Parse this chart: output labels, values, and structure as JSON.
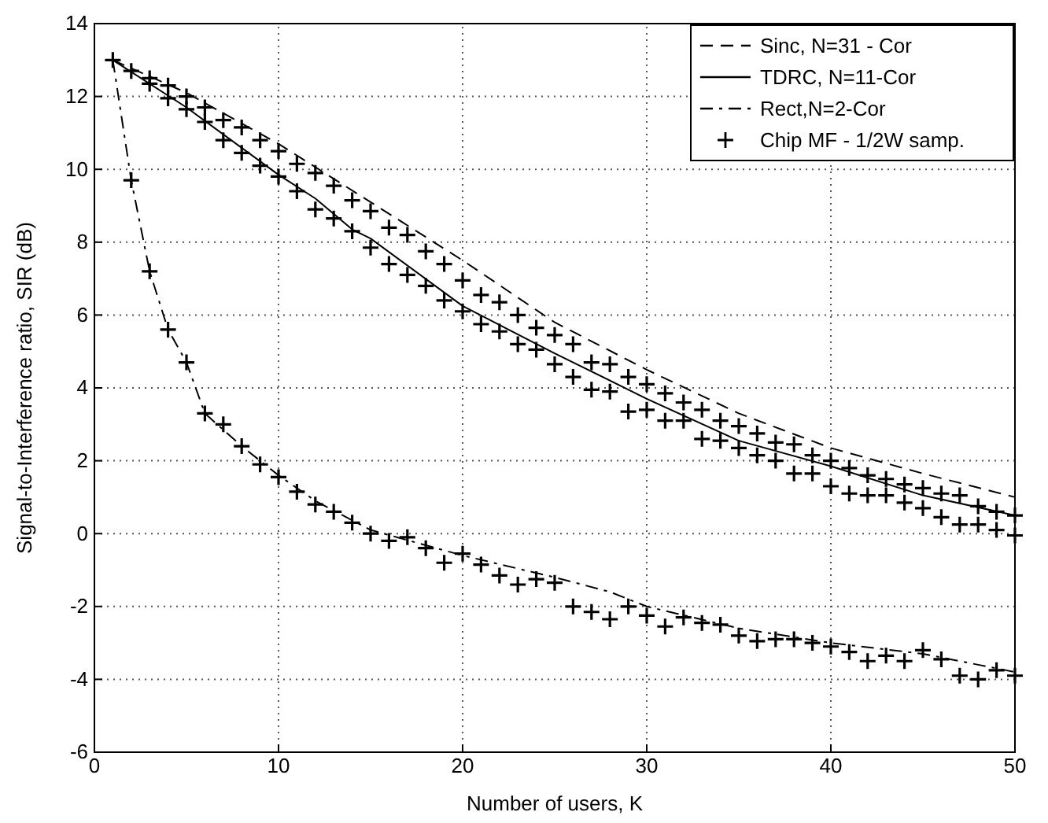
{
  "chart_data": {
    "type": "line",
    "xlabel": "Number of users, K",
    "ylabel": "Signal-to-Interference ratio, SIR (dB)",
    "xlim": [
      0,
      50
    ],
    "ylim": [
      -6,
      14
    ],
    "xticks": [
      0,
      10,
      20,
      30,
      40,
      50
    ],
    "yticks": [
      -6,
      -4,
      -2,
      0,
      2,
      4,
      6,
      8,
      10,
      12,
      14
    ],
    "grid": true,
    "legend": "top right",
    "series": [
      {
        "name": "Sinc, N=31 - Cor",
        "color": "#000000",
        "line_style": "dashed",
        "x": [
          1,
          5,
          10,
          15,
          20,
          25,
          30,
          35,
          40,
          45,
          50
        ],
        "values": [
          13,
          12.1,
          10.7,
          9.1,
          7.5,
          5.8,
          4.5,
          3.3,
          2.35,
          1.65,
          1.0
        ]
      },
      {
        "name": "TDRC, N=11-Cor",
        "color": "#000000",
        "line_style": "solid",
        "x": [
          1,
          5,
          10,
          12,
          14,
          15,
          20,
          25,
          30,
          35,
          40,
          45,
          50
        ],
        "values": [
          13,
          11.7,
          9.85,
          9.2,
          8.35,
          8.1,
          6.25,
          4.95,
          3.7,
          2.55,
          1.85,
          1.05,
          0.5
        ]
      },
      {
        "name": "Rect,N=2-Cor",
        "color": "#000000",
        "line_style": "dashdot",
        "x": [
          1,
          2,
          3,
          4,
          5,
          6,
          8,
          10,
          12,
          15,
          20,
          25,
          28,
          30,
          35,
          40,
          45,
          48,
          50
        ],
        "values": [
          13,
          9.7,
          7.2,
          5.6,
          4.7,
          3.3,
          2.4,
          1.6,
          0.9,
          0.1,
          -0.6,
          -1.2,
          -1.6,
          -2.0,
          -2.6,
          -3.0,
          -3.3,
          -3.6,
          -3.8
        ]
      },
      {
        "name": "Chip MF - 1/2W samp.",
        "type": "scatter",
        "marker": "cross",
        "color": "#000000",
        "x": [
          1,
          2,
          3,
          4,
          5,
          6,
          7,
          8,
          9,
          10,
          11,
          12,
          13,
          14,
          15,
          16,
          17,
          18,
          19,
          20,
          21,
          22,
          23,
          24,
          25,
          26,
          27,
          28,
          29,
          30,
          31,
          32,
          33,
          34,
          35,
          36,
          37,
          38,
          39,
          40,
          41,
          42,
          43,
          44,
          45,
          46,
          47,
          48,
          49,
          50,
          3,
          4,
          5,
          6,
          7,
          8,
          9,
          10,
          11,
          12,
          13,
          14,
          15,
          16,
          17,
          18,
          19,
          20,
          21,
          22,
          23,
          24,
          25,
          26,
          27,
          28,
          29,
          30,
          31,
          32,
          33,
          34,
          35,
          36,
          37,
          38,
          39,
          40,
          41,
          42,
          43,
          44,
          45,
          46,
          47,
          48,
          49,
          50,
          2,
          3,
          4,
          5,
          6,
          7,
          8,
          9,
          10,
          11,
          12,
          13,
          14,
          15,
          16,
          17,
          18,
          19,
          20,
          21,
          22,
          23,
          24,
          25,
          26,
          27,
          28,
          29,
          30,
          31,
          32,
          33,
          34,
          35,
          36,
          37,
          38,
          39,
          40,
          41,
          42,
          43,
          44,
          45,
          46,
          47,
          48,
          49,
          50
        ],
        "values": [
          13.0,
          12.7,
          12.5,
          12.3,
          12.0,
          11.7,
          11.35,
          11.15,
          10.8,
          10.5,
          10.15,
          9.9,
          9.55,
          9.15,
          8.85,
          8.4,
          8.2,
          7.75,
          7.4,
          6.95,
          6.55,
          6.35,
          6.0,
          5.65,
          5.45,
          5.2,
          4.7,
          4.65,
          4.3,
          4.1,
          3.85,
          3.6,
          3.4,
          3.1,
          2.95,
          2.75,
          2.5,
          2.45,
          2.15,
          2.0,
          1.8,
          1.6,
          1.5,
          1.35,
          1.25,
          1.1,
          1.05,
          0.75,
          0.6,
          0.5,
          12.35,
          11.95,
          11.65,
          11.3,
          10.8,
          10.45,
          10.1,
          9.8,
          9.4,
          8.9,
          8.65,
          8.3,
          7.85,
          7.4,
          7.1,
          6.8,
          6.4,
          6.1,
          5.75,
          5.55,
          5.2,
          5.05,
          4.65,
          4.3,
          3.95,
          3.9,
          3.35,
          3.4,
          3.1,
          3.1,
          2.6,
          2.55,
          2.35,
          2.15,
          2.0,
          1.65,
          1.65,
          1.3,
          1.1,
          1.05,
          1.05,
          0.85,
          0.7,
          0.45,
          0.25,
          0.25,
          0.1,
          -0.05,
          9.7,
          7.2,
          5.6,
          4.7,
          3.3,
          3.0,
          2.4,
          1.9,
          1.55,
          1.15,
          0.8,
          0.6,
          0.3,
          0.0,
          -0.2,
          -0.1,
          -0.4,
          -0.8,
          -0.55,
          -0.85,
          -1.15,
          -1.4,
          -1.25,
          -1.35,
          -2.0,
          -2.15,
          -2.35,
          -2.0,
          -2.25,
          -2.55,
          -2.3,
          -2.45,
          -2.5,
          -2.8,
          -2.95,
          -2.9,
          -2.9,
          -3.0,
          -3.1,
          -3.25,
          -3.5,
          -3.35,
          -3.5,
          -3.2,
          -3.45,
          -3.9,
          -4.0,
          -3.75,
          -3.9
        ]
      }
    ]
  }
}
